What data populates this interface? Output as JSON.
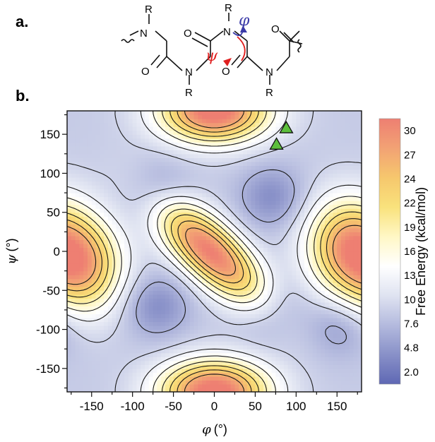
{
  "panels": {
    "a": "a.",
    "b": "b."
  },
  "structure": {
    "r_label": "R",
    "n_label": "N",
    "o_label": "O",
    "phi_symbol": "φ",
    "psi_symbol": "ψ",
    "phi_color": "#3a3aa8",
    "psi_color": "#e02020"
  },
  "chart_data": {
    "type": "heatmap",
    "title": "",
    "xlabel_symbol": "φ",
    "xlabel_unit": "(°)",
    "ylabel_symbol": "ψ",
    "ylabel_unit": "(°)",
    "xlim": [
      -180,
      180
    ],
    "ylim": [
      -180,
      180
    ],
    "xticks": [
      -150,
      -100,
      -50,
      0,
      50,
      100,
      150
    ],
    "yticks": [
      150,
      100,
      50,
      0,
      -50,
      -100,
      -150
    ],
    "colorbar": {
      "label": "Free Energy (kcal/mol)",
      "ticks": [
        "30",
        "27",
        "24",
        "22",
        "19",
        "16",
        "13",
        "10",
        "7.6",
        "4.8",
        "2.0"
      ],
      "range": [
        2.0,
        30
      ]
    },
    "colormap": [
      "#5f68b4",
      "#8890c8",
      "#b4bade",
      "#dfe3f1",
      "#ffffff",
      "#fff7c5",
      "#f9e27c",
      "#f6c76d",
      "#f2a274",
      "#ee7f72"
    ],
    "maxima": [
      {
        "phi": -5,
        "psi": 0,
        "energy": 30
      },
      {
        "phi": 160,
        "psi": 10,
        "energy": 24
      },
      {
        "phi": -160,
        "psi": -20,
        "energy": 24
      },
      {
        "phi": 0,
        "psi": 170,
        "energy": 21
      },
      {
        "phi": 0,
        "psi": -170,
        "energy": 22
      }
    ],
    "minima": [
      {
        "phi": -70,
        "psi": 75,
        "energy": 5
      },
      {
        "phi": 70,
        "psi": 70,
        "energy": 5
      },
      {
        "phi": -70,
        "psi": -70,
        "energy": 5
      },
      {
        "phi": 70,
        "psi": -75,
        "energy": 6
      },
      {
        "phi": 155,
        "psi": -95,
        "energy": 6
      }
    ],
    "markers": [
      {
        "phi": 88,
        "psi": 158,
        "symbol": "triangle",
        "color": "#5cbf3c"
      },
      {
        "phi": 76,
        "psi": 137,
        "symbol": "triangle",
        "color": "#5cbf3c"
      }
    ]
  }
}
